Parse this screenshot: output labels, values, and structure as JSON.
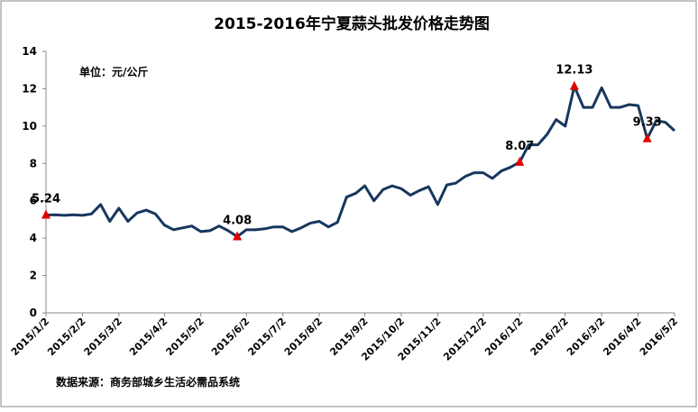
{
  "chart_data": {
    "type": "line",
    "title": "2015-2016年宁夏蒜头批发价格走势图",
    "unit_label": "单位：元/公斤",
    "source": "数据来源：商务部城乡生活必需品系统",
    "categories": [
      "2015/1/2",
      null,
      null,
      null,
      "2015/2/2",
      null,
      null,
      null,
      "2015/3/2",
      null,
      null,
      null,
      null,
      "2015/4/2",
      null,
      null,
      null,
      "2015/5/2",
      null,
      null,
      null,
      null,
      "2015/6/2",
      null,
      null,
      null,
      "2015/7/2",
      null,
      null,
      null,
      "2015/8/2",
      null,
      null,
      null,
      null,
      "2015/9/2",
      null,
      null,
      null,
      "2015/10/2",
      null,
      null,
      null,
      "2015/11/2",
      null,
      null,
      null,
      null,
      "2015/12/2",
      null,
      null,
      null,
      "2016/1/2",
      null,
      null,
      null,
      null,
      "2016/2/2",
      null,
      null,
      null,
      "2016/3/2",
      null,
      null,
      null,
      "2016/4/2",
      null,
      null,
      null,
      "2016/5/2"
    ],
    "series": [
      {
        "color": "#17375e",
        "values": [
          5.24,
          5.25,
          5.22,
          5.25,
          5.22,
          5.3,
          5.8,
          4.9,
          5.6,
          4.9,
          5.35,
          5.5,
          5.3,
          4.7,
          4.45,
          4.55,
          4.65,
          4.35,
          4.4,
          4.65,
          4.4,
          4.08,
          4.45,
          4.45,
          4.5,
          4.6,
          4.6,
          4.35,
          4.55,
          4.8,
          4.9,
          4.6,
          4.85,
          6.2,
          6.4,
          6.8,
          6.0,
          6.6,
          6.8,
          6.65,
          6.3,
          6.55,
          6.75,
          5.8,
          6.85,
          6.95,
          7.3,
          7.5,
          7.5,
          7.2,
          7.6,
          7.8,
          8.07,
          9.0,
          9.0,
          9.55,
          10.35,
          10.0,
          12.13,
          11.0,
          11.0,
          12.05,
          11.0,
          11.0,
          11.15,
          11.1,
          9.33,
          10.3,
          10.2,
          9.75
        ],
        "value_labels": [
          "5.24",
          null,
          null,
          null,
          null,
          null,
          null,
          null,
          null,
          null,
          null,
          null,
          null,
          null,
          null,
          null,
          null,
          null,
          null,
          null,
          null,
          "4.08",
          null,
          null,
          null,
          null,
          null,
          null,
          null,
          null,
          null,
          null,
          null,
          null,
          null,
          null,
          null,
          null,
          null,
          null,
          null,
          null,
          null,
          null,
          null,
          null,
          null,
          null,
          null,
          null,
          null,
          null,
          "8.07",
          null,
          null,
          null,
          null,
          null,
          "12.13",
          null,
          null,
          null,
          null,
          null,
          null,
          null,
          "9.33",
          null,
          null,
          null
        ]
      }
    ],
    "marker_color": "#e00000",
    "ylim": [
      0,
      14
    ],
    "yticks": [
      0,
      2,
      4,
      6,
      8,
      10,
      12,
      14
    ],
    "grid": false
  }
}
